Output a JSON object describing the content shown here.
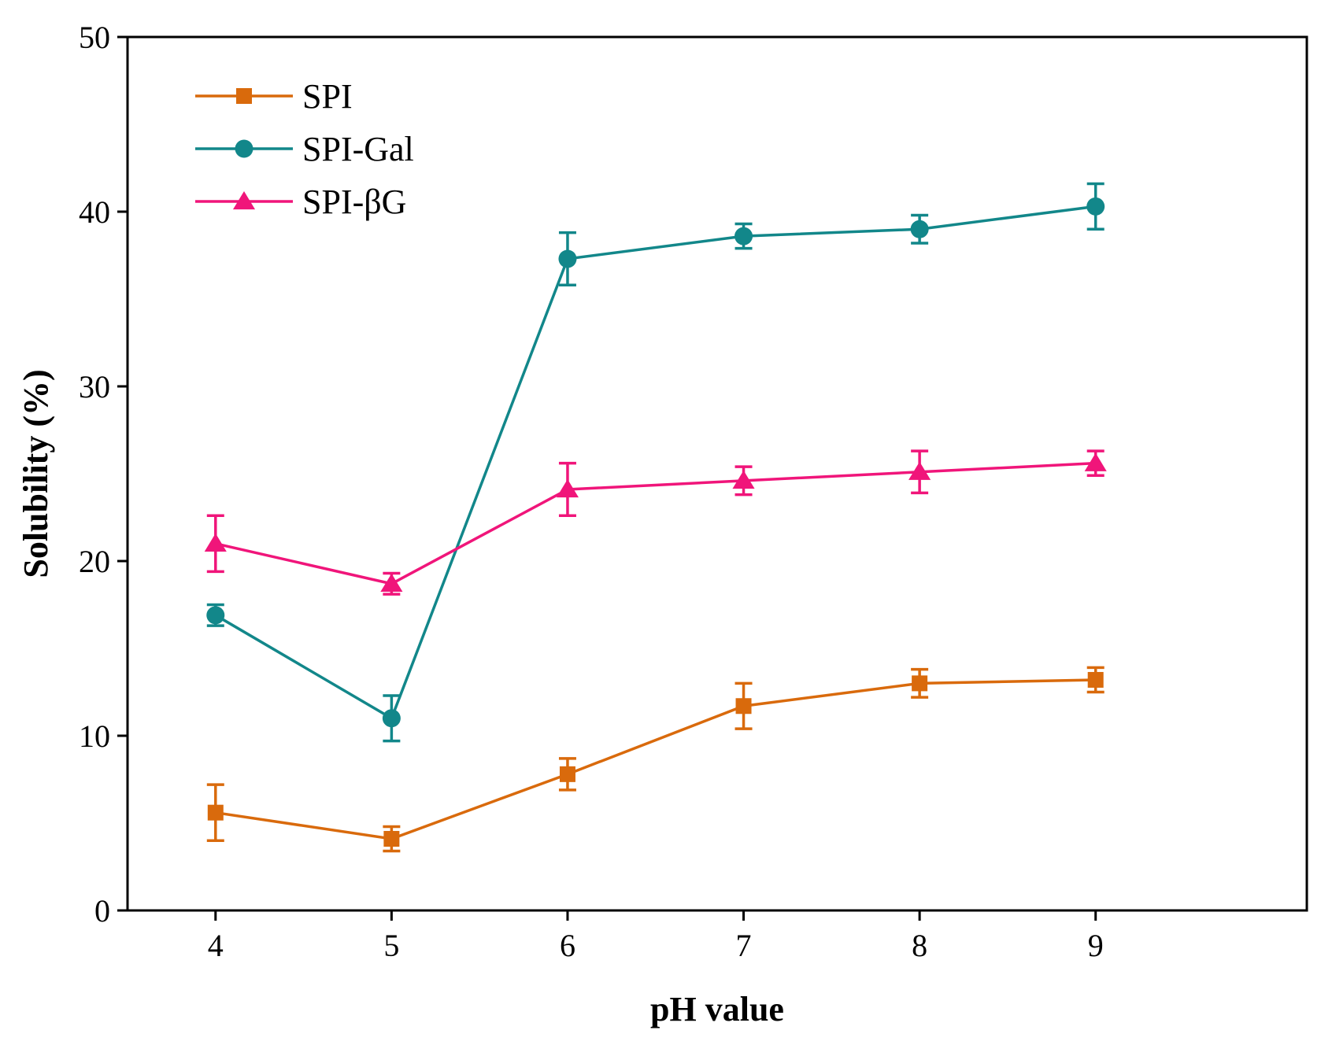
{
  "chart_data": {
    "type": "line",
    "title": "",
    "xlabel": "pH value",
    "ylabel": "Solubility (%)",
    "x": [
      4,
      5,
      6,
      7,
      8,
      9
    ],
    "xlim": [
      3.5,
      10.2
    ],
    "ylim": [
      0,
      50
    ],
    "xticks": [
      4,
      5,
      6,
      7,
      8,
      9
    ],
    "yticks": [
      0,
      10,
      20,
      30,
      40,
      50
    ],
    "grid": false,
    "legend_position": "top-left",
    "series": [
      {
        "name": "SPI",
        "color": "#d96a0c",
        "marker": "square",
        "values": [
          5.6,
          4.1,
          7.8,
          11.7,
          13.0,
          13.2
        ],
        "errors": [
          1.6,
          0.7,
          0.9,
          1.3,
          0.8,
          0.7
        ]
      },
      {
        "name": "SPI-Gal",
        "color": "#12878a",
        "marker": "circle",
        "values": [
          16.9,
          11.0,
          37.3,
          38.6,
          39.0,
          40.3
        ],
        "errors": [
          0.6,
          1.3,
          1.5,
          0.7,
          0.8,
          1.3
        ]
      },
      {
        "name": "SPI-βG",
        "color": "#f0157a",
        "marker": "triangle",
        "values": [
          21.0,
          18.7,
          24.1,
          24.6,
          25.1,
          25.6
        ],
        "errors": [
          1.6,
          0.6,
          1.5,
          0.8,
          1.2,
          0.7
        ]
      }
    ]
  }
}
